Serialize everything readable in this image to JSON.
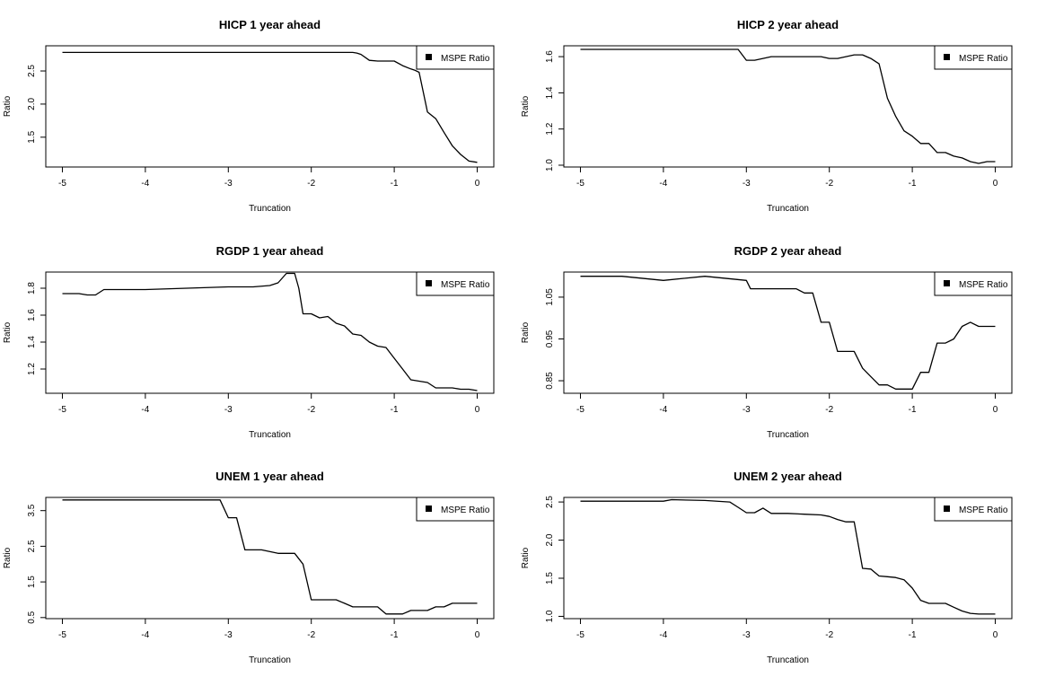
{
  "chart_data": [
    {
      "type": "line",
      "title": "HICP 1 year ahead",
      "xlabel": "Truncation",
      "ylabel": "Ratio",
      "xlim": [
        -5.2,
        0.2
      ],
      "ylim": [
        1.05,
        2.88
      ],
      "xticks": [
        "-5",
        "-4",
        "-3",
        "-2",
        "-1",
        "0"
      ],
      "yticks": [
        "1.5",
        "2.0",
        "2.5"
      ],
      "legend": "top-right",
      "series": [
        {
          "name": "MSPE Ratio",
          "x": [
            -5,
            -4.5,
            -4,
            -3.5,
            -3,
            -2.5,
            -2,
            -1.6,
            -1.5,
            -1.45,
            -1.4,
            -1.3,
            -1.2,
            -1.1,
            -1.0,
            -0.9,
            -0.8,
            -0.75,
            -0.7,
            -0.6,
            -0.5,
            -0.4,
            -0.3,
            -0.2,
            -0.1,
            0
          ],
          "y": [
            2.78,
            2.78,
            2.78,
            2.78,
            2.78,
            2.78,
            2.78,
            2.78,
            2.78,
            2.77,
            2.75,
            2.66,
            2.65,
            2.65,
            2.65,
            2.58,
            2.53,
            2.51,
            2.48,
            1.88,
            1.78,
            1.57,
            1.37,
            1.24,
            1.14,
            1.12
          ]
        }
      ]
    },
    {
      "type": "line",
      "title": "HICP 2 year ahead",
      "xlabel": "Truncation",
      "ylabel": "Ratio",
      "xlim": [
        -5.2,
        0.2
      ],
      "ylim": [
        0.99,
        1.66
      ],
      "xticks": [
        "-5",
        "-4",
        "-3",
        "-2",
        "-1",
        "0"
      ],
      "yticks": [
        "1.0",
        "1.2",
        "1.4",
        "1.6"
      ],
      "legend": "top-right",
      "series": [
        {
          "name": "MSPE Ratio",
          "x": [
            -5,
            -4.5,
            -4,
            -3.5,
            -3.1,
            -3.0,
            -2.9,
            -2.8,
            -2.7,
            -2.5,
            -2.2,
            -2.1,
            -2.0,
            -1.9,
            -1.7,
            -1.6,
            -1.5,
            -1.4,
            -1.3,
            -1.2,
            -1.1,
            -1.0,
            -0.9,
            -0.8,
            -0.7,
            -0.6,
            -0.5,
            -0.4,
            -0.3,
            -0.2,
            -0.1,
            0
          ],
          "y": [
            1.64,
            1.64,
            1.64,
            1.64,
            1.64,
            1.58,
            1.58,
            1.59,
            1.6,
            1.6,
            1.6,
            1.6,
            1.59,
            1.59,
            1.61,
            1.61,
            1.59,
            1.56,
            1.37,
            1.27,
            1.19,
            1.16,
            1.12,
            1.12,
            1.07,
            1.07,
            1.05,
            1.04,
            1.02,
            1.01,
            1.02,
            1.02
          ]
        }
      ]
    },
    {
      "type": "line",
      "title": "RGDP 1 year ahead",
      "xlabel": "Truncation",
      "ylabel": "Ratio",
      "xlim": [
        -5.2,
        0.2
      ],
      "ylim": [
        1.02,
        1.92
      ],
      "xticks": [
        "-5",
        "-4",
        "-3",
        "-2",
        "-1",
        "0"
      ],
      "yticks": [
        "1.2",
        "1.4",
        "1.6",
        "1.8"
      ],
      "legend": "top-right",
      "series": [
        {
          "name": "MSPE Ratio",
          "x": [
            -5,
            -4.8,
            -4.7,
            -4.6,
            -4.5,
            -4.0,
            -3.5,
            -3.0,
            -2.7,
            -2.5,
            -2.4,
            -2.3,
            -2.2,
            -2.15,
            -2.1,
            -2.0,
            -1.9,
            -1.8,
            -1.7,
            -1.6,
            -1.5,
            -1.4,
            -1.3,
            -1.2,
            -1.1,
            -1.0,
            -0.9,
            -0.8,
            -0.7,
            -0.6,
            -0.5,
            -0.4,
            -0.3,
            -0.2,
            -0.1,
            0
          ],
          "y": [
            1.76,
            1.76,
            1.75,
            1.75,
            1.79,
            1.79,
            1.8,
            1.81,
            1.81,
            1.82,
            1.84,
            1.91,
            1.91,
            1.8,
            1.61,
            1.61,
            1.58,
            1.59,
            1.54,
            1.52,
            1.46,
            1.45,
            1.4,
            1.37,
            1.36,
            1.28,
            1.2,
            1.12,
            1.11,
            1.1,
            1.06,
            1.06,
            1.06,
            1.05,
            1.05,
            1.04
          ]
        }
      ]
    },
    {
      "type": "line",
      "title": "RGDP 2 year ahead",
      "xlabel": "Truncation",
      "ylabel": "Ratio",
      "xlim": [
        -5.2,
        0.2
      ],
      "ylim": [
        0.82,
        1.11
      ],
      "xticks": [
        "-5",
        "-4",
        "-3",
        "-2",
        "-1",
        "0"
      ],
      "yticks": [
        "0.85",
        "0.95",
        "1.05"
      ],
      "legend": "top-right",
      "series": [
        {
          "name": "MSPE Ratio",
          "x": [
            -5,
            -4.5,
            -4,
            -3.5,
            -3.0,
            -2.95,
            -2.9,
            -2.6,
            -2.5,
            -2.4,
            -2.3,
            -2.2,
            -2.1,
            -2.0,
            -1.9,
            -1.8,
            -1.7,
            -1.6,
            -1.5,
            -1.4,
            -1.3,
            -1.2,
            -1.1,
            -1.0,
            -0.9,
            -0.8,
            -0.7,
            -0.6,
            -0.5,
            -0.4,
            -0.3,
            -0.2,
            -0.1,
            0
          ],
          "y": [
            1.1,
            1.1,
            1.09,
            1.1,
            1.09,
            1.07,
            1.07,
            1.07,
            1.07,
            1.07,
            1.06,
            1.06,
            0.99,
            0.99,
            0.92,
            0.92,
            0.92,
            0.88,
            0.86,
            0.84,
            0.84,
            0.83,
            0.83,
            0.83,
            0.87,
            0.87,
            0.94,
            0.94,
            0.95,
            0.98,
            0.99,
            0.98,
            0.98,
            0.98
          ]
        }
      ]
    },
    {
      "type": "line",
      "title": "UNEM 1 year ahead",
      "xlabel": "Truncation",
      "ylabel": "Ratio",
      "xlim": [
        -5.2,
        0.2
      ],
      "ylim": [
        0.47,
        3.87
      ],
      "xticks": [
        "-5",
        "-4",
        "-3",
        "-2",
        "-1",
        "0"
      ],
      "yticks": [
        "0.5",
        "1.5",
        "2.5",
        "3.5"
      ],
      "legend": "top-right",
      "series": [
        {
          "name": "MSPE Ratio",
          "x": [
            -5,
            -4.5,
            -4,
            -3.5,
            -3.1,
            -3.0,
            -2.9,
            -2.8,
            -2.6,
            -2.4,
            -2.2,
            -2.1,
            -2.0,
            -1.9,
            -1.7,
            -1.6,
            -1.5,
            -1.3,
            -1.2,
            -1.1,
            -1.0,
            -0.9,
            -0.8,
            -0.7,
            -0.6,
            -0.5,
            -0.4,
            -0.3,
            -0.2,
            -0.1,
            0
          ],
          "y": [
            3.8,
            3.8,
            3.8,
            3.8,
            3.8,
            3.3,
            3.3,
            2.4,
            2.4,
            2.3,
            2.3,
            2.0,
            1.0,
            1.0,
            1.0,
            0.9,
            0.8,
            0.8,
            0.8,
            0.6,
            0.6,
            0.6,
            0.7,
            0.7,
            0.7,
            0.8,
            0.8,
            0.9,
            0.9,
            0.9,
            0.9
          ]
        }
      ]
    },
    {
      "type": "line",
      "title": "UNEM 2 year ahead",
      "xlabel": "Truncation",
      "ylabel": "Ratio",
      "xlim": [
        -5.2,
        0.2
      ],
      "ylim": [
        0.97,
        2.56
      ],
      "xticks": [
        "-5",
        "-4",
        "-3",
        "-2",
        "-1",
        "0"
      ],
      "yticks": [
        "1.0",
        "1.5",
        "2.0",
        "2.5"
      ],
      "legend": "top-right",
      "series": [
        {
          "name": "MSPE Ratio",
          "x": [
            -5,
            -4.5,
            -4.0,
            -3.9,
            -3.5,
            -3.2,
            -3.1,
            -3.0,
            -2.9,
            -2.8,
            -2.7,
            -2.5,
            -2.3,
            -2.1,
            -2.0,
            -1.9,
            -1.8,
            -1.7,
            -1.6,
            -1.5,
            -1.4,
            -1.3,
            -1.2,
            -1.1,
            -1.0,
            -0.9,
            -0.8,
            -0.7,
            -0.6,
            -0.5,
            -0.4,
            -0.3,
            -0.2,
            -0.1,
            0
          ],
          "y": [
            2.51,
            2.51,
            2.51,
            2.53,
            2.52,
            2.5,
            2.43,
            2.36,
            2.36,
            2.42,
            2.35,
            2.35,
            2.34,
            2.33,
            2.31,
            2.27,
            2.24,
            2.24,
            1.63,
            1.62,
            1.53,
            1.52,
            1.51,
            1.48,
            1.37,
            1.21,
            1.17,
            1.17,
            1.17,
            1.12,
            1.07,
            1.04,
            1.03,
            1.03,
            1.03
          ]
        }
      ]
    }
  ]
}
